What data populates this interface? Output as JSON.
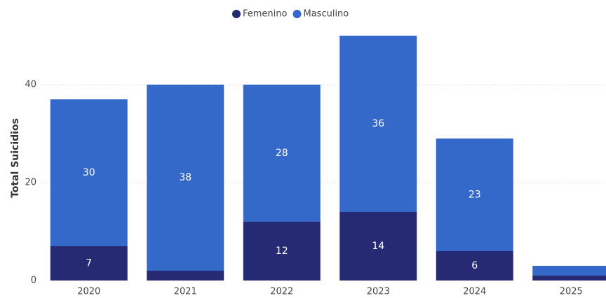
{
  "chart_data": {
    "type": "stacked_bar",
    "y_label": "Total Suicidios",
    "categories": [
      "2020",
      "2021",
      "2022",
      "2023",
      "2024",
      "2025"
    ],
    "series": [
      {
        "name": "Femenino",
        "color": "#252a72",
        "values": [
          7,
          2,
          12,
          14,
          6,
          1
        ]
      },
      {
        "name": "Masculino",
        "color": "#3468c9",
        "values": [
          30,
          38,
          28,
          36,
          23,
          2
        ]
      }
    ],
    "ylim": [
      0,
      50
    ],
    "yticks": [
      0,
      20,
      40
    ],
    "grid": true,
    "legend": "top"
  }
}
